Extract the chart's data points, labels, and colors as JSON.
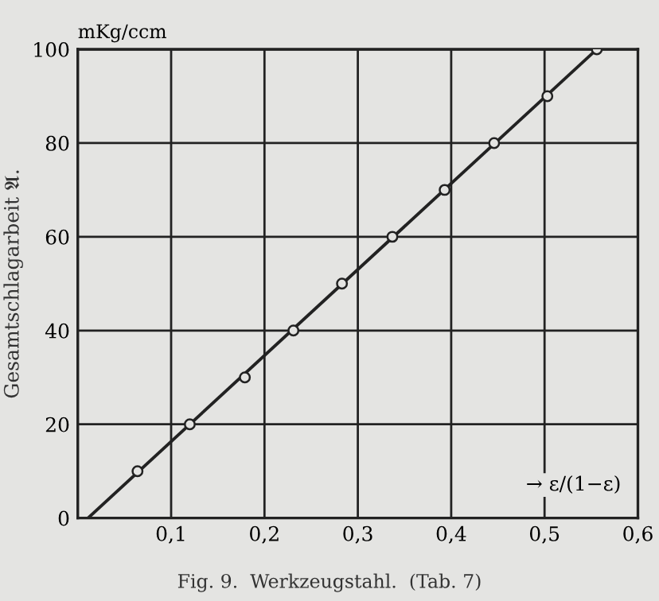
{
  "chart_data": {
    "type": "line",
    "title": "Fig. 9.  Werkzeugstahl.  (Tab. 7)",
    "ylabel": "Gesamtschlagarbeit 𝔄.",
    "xlabel": "→ ε/(1−ε)",
    "annotations": [
      "mKg/ccm"
    ],
    "series": [
      {
        "color": "#222222",
        "x": [
          0.011,
          0.556
        ],
        "values": [
          0,
          100
        ]
      },
      {
        "type": "scatter",
        "color": "#222222",
        "x": [
          0.064,
          0.12,
          0.179,
          0.231,
          0.283,
          0.337,
          0.393,
          0.446,
          0.503,
          0.556
        ],
        "values": [
          10,
          20,
          30,
          40,
          50,
          60,
          70,
          80,
          90,
          100
        ],
        "marker": "circle"
      }
    ],
    "xlim": [
      0,
      0.6
    ],
    "xticks": [
      {
        "value": 0,
        "label": null
      },
      {
        "value": 0.1,
        "label": "0,1"
      },
      {
        "value": 0.2,
        "label": "0,2"
      },
      {
        "value": 0.3,
        "label": "0,3"
      },
      {
        "value": 0.4,
        "label": "0,4"
      },
      {
        "value": 0.5,
        "label": "0,5"
      },
      {
        "value": 0.6,
        "label": "0,6"
      }
    ],
    "ylim": [
      0,
      100
    ],
    "yticks": [
      0,
      20,
      40,
      60,
      80,
      100
    ],
    "grid": true
  }
}
